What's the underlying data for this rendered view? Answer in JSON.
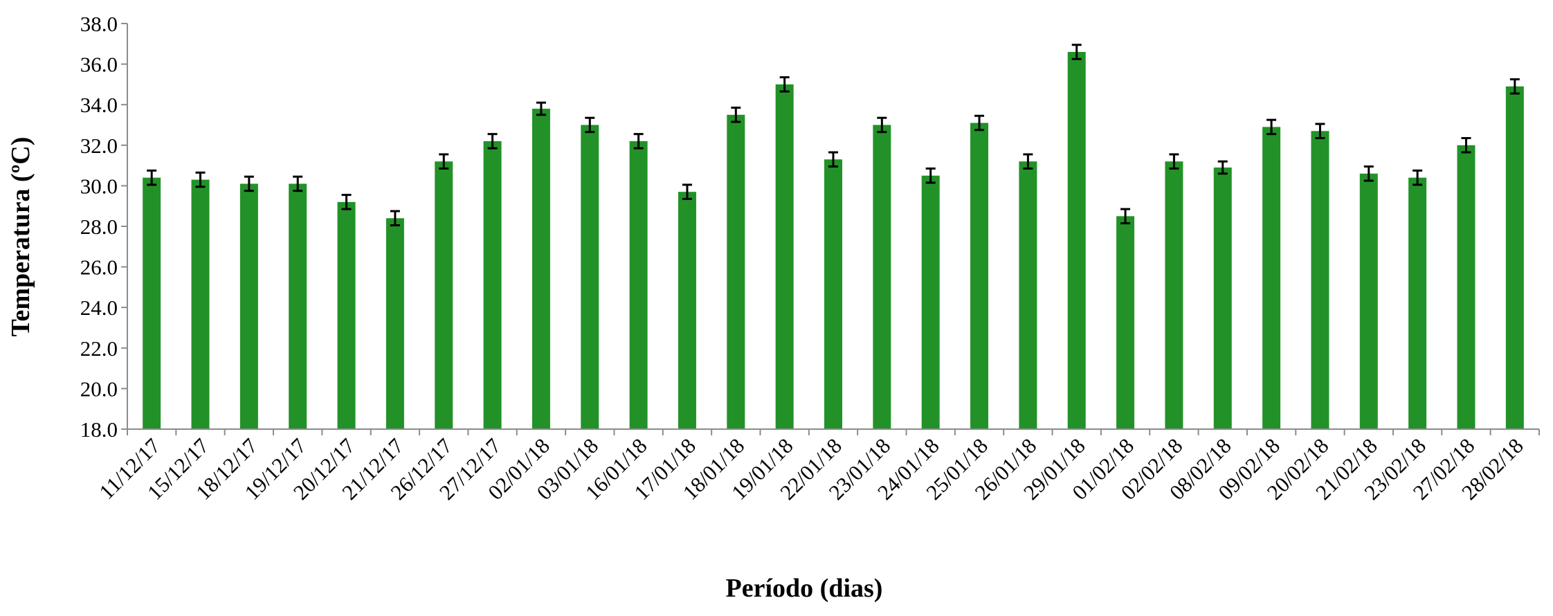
{
  "chart_data": {
    "type": "bar",
    "xlabel": "Período (dias)",
    "ylabel": "Temperatura (ºC)",
    "ylim": [
      18,
      38
    ],
    "yticks": [
      "18.0",
      "20.0",
      "22.0",
      "24.0",
      "26.0",
      "28.0",
      "30.0",
      "32.0",
      "34.0",
      "36.0",
      "38.0"
    ],
    "grid": false,
    "bar_color": "#229228",
    "error_bar_color": "#000000",
    "categories": [
      "11/12/17",
      "15/12/17",
      "18/12/17",
      "19/12/17",
      "20/12/17",
      "21/12/17",
      "26/12/17",
      "27/12/17",
      "02/01/18",
      "03/01/18",
      "16/01/18",
      "17/01/18",
      "18/01/18",
      "19/01/18",
      "22/01/18",
      "23/01/18",
      "24/01/18",
      "25/01/18",
      "26/01/18",
      "29/01/18",
      "01/02/18",
      "02/02/18",
      "08/02/18",
      "09/02/18",
      "20/02/18",
      "21/02/18",
      "23/02/18",
      "27/02/18",
      "28/02/18"
    ],
    "values": [
      30.4,
      30.3,
      30.1,
      30.1,
      29.2,
      28.4,
      31.2,
      32.2,
      33.8,
      33.0,
      32.2,
      29.7,
      33.5,
      35.0,
      31.3,
      33.0,
      30.5,
      33.1,
      31.2,
      36.6,
      28.5,
      31.2,
      30.9,
      32.9,
      32.7,
      30.6,
      30.4,
      32.0,
      34.9
    ],
    "errors": [
      0.35,
      0.35,
      0.35,
      0.35,
      0.35,
      0.35,
      0.35,
      0.35,
      0.3,
      0.35,
      0.35,
      0.35,
      0.35,
      0.35,
      0.35,
      0.35,
      0.35,
      0.35,
      0.35,
      0.35,
      0.35,
      0.35,
      0.3,
      0.35,
      0.35,
      0.35,
      0.35,
      0.35,
      0.35
    ]
  }
}
